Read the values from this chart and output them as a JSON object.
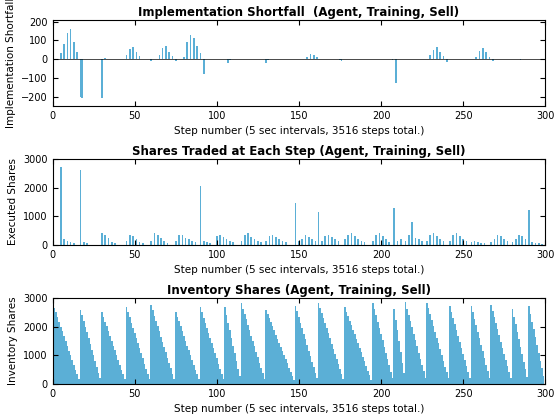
{
  "N": 300,
  "bar_color": "#5bafd6",
  "title1": "Implementation Shortfall  (Agent, Training, Sell)",
  "title2": "Shares Traded at Each Step (Agent, Training, Sell)",
  "title3": "Inventory Shares (Agent, Training, Sell)",
  "xlabel": "Step number (5 sec intervals, 3516 steps total.)",
  "ylabel1": "Implementation Shortfall",
  "ylabel2": "Executed Shares",
  "ylabel3": "Inventory Shares",
  "ylim1": [
    -250,
    210
  ],
  "ylim2": [
    0,
    3000
  ],
  "ylim3": [
    0,
    3000
  ],
  "xlim": [
    0,
    300
  ],
  "title_fontsize": 8.5,
  "label_fontsize": 7.5,
  "tick_fontsize": 7
}
